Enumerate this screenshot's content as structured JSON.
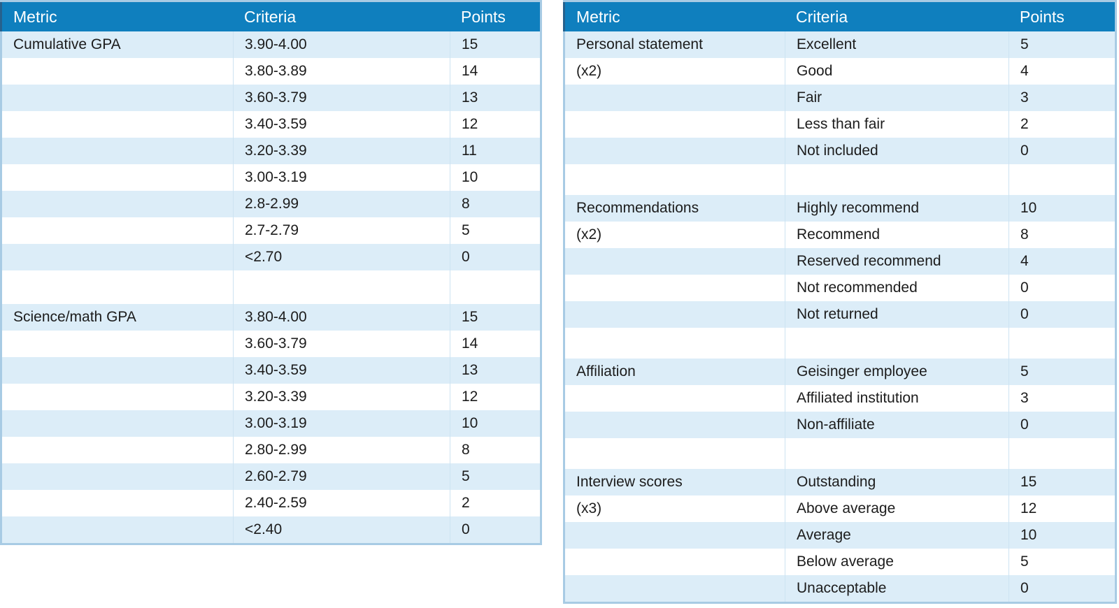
{
  "colors": {
    "header_background": "#0F7FBE",
    "header_text": "#FFFFFF",
    "banded_row_fill": "#DCEDF8",
    "table_border": "#A8CBE4",
    "header_left_edge": "#26618D",
    "body_text": "#1C1C1C"
  },
  "left_table": {
    "headers": [
      "Metric",
      "Criteria",
      "Points"
    ],
    "rows": [
      {
        "metric": "Cumulative GPA",
        "criteria": "3.90-4.00",
        "points": "15"
      },
      {
        "metric": "",
        "criteria": "3.80-3.89",
        "points": "14"
      },
      {
        "metric": "",
        "criteria": "3.60-3.79",
        "points": "13"
      },
      {
        "metric": "",
        "criteria": "3.40-3.59",
        "points": "12"
      },
      {
        "metric": "",
        "criteria": "3.20-3.39",
        "points": "11"
      },
      {
        "metric": "",
        "criteria": "3.00-3.19",
        "points": "10"
      },
      {
        "metric": "",
        "criteria": "2.8-2.99",
        "points": "8"
      },
      {
        "metric": "",
        "criteria": "2.7-2.79",
        "points": "5"
      },
      {
        "metric": "",
        "criteria": "<2.70",
        "points": "0"
      },
      {
        "blank": true
      },
      {
        "metric": "Science/math GPA",
        "criteria": "3.80-4.00",
        "points": "15"
      },
      {
        "metric": "",
        "criteria": "3.60-3.79",
        "points": "14"
      },
      {
        "metric": "",
        "criteria": "3.40-3.59",
        "points": "13"
      },
      {
        "metric": "",
        "criteria": "3.20-3.39",
        "points": "12"
      },
      {
        "metric": "",
        "criteria": "3.00-3.19",
        "points": "10"
      },
      {
        "metric": "",
        "criteria": "2.80-2.99",
        "points": "8"
      },
      {
        "metric": "",
        "criteria": "2.60-2.79",
        "points": "5"
      },
      {
        "metric": "",
        "criteria": "2.40-2.59",
        "points": "2"
      },
      {
        "metric": "",
        "criteria": "<2.40",
        "points": "0"
      }
    ]
  },
  "right_table": {
    "headers": [
      "Metric",
      "Criteria",
      "Points"
    ],
    "rows": [
      {
        "metric": "Personal statement",
        "criteria": "Excellent",
        "points": "5"
      },
      {
        "metric": "(x2)",
        "criteria": "Good",
        "points": "4"
      },
      {
        "metric": "",
        "criteria": "Fair",
        "points": "3"
      },
      {
        "metric": "",
        "criteria": "Less than fair",
        "points": "2"
      },
      {
        "metric": "",
        "criteria": "Not included",
        "points": "0"
      },
      {
        "blank": true
      },
      {
        "metric": "Recommendations",
        "criteria": "Highly recommend",
        "points": "10"
      },
      {
        "metric": "(x2)",
        "criteria": "Recommend",
        "points": "8"
      },
      {
        "metric": "",
        "criteria": "Reserved recommend",
        "points": "4"
      },
      {
        "metric": "",
        "criteria": "Not recommended",
        "points": "0"
      },
      {
        "metric": "",
        "criteria": "Not returned",
        "points": "0"
      },
      {
        "blank": true
      },
      {
        "metric": "Affiliation",
        "criteria": "Geisinger employee",
        "points": "5"
      },
      {
        "metric": "",
        "criteria": "Affiliated institution",
        "points": "3"
      },
      {
        "metric": "",
        "criteria": "Non-affiliate",
        "points": "0"
      },
      {
        "blank": true
      },
      {
        "metric": "Interview scores",
        "criteria": "Outstanding",
        "points": "15"
      },
      {
        "metric": "(x3)",
        "criteria": "Above average",
        "points": "12"
      },
      {
        "metric": "",
        "criteria": "Average",
        "points": "10"
      },
      {
        "metric": "",
        "criteria": "Below average",
        "points": "5"
      },
      {
        "metric": "",
        "criteria": "Unacceptable",
        "points": "0"
      }
    ]
  }
}
